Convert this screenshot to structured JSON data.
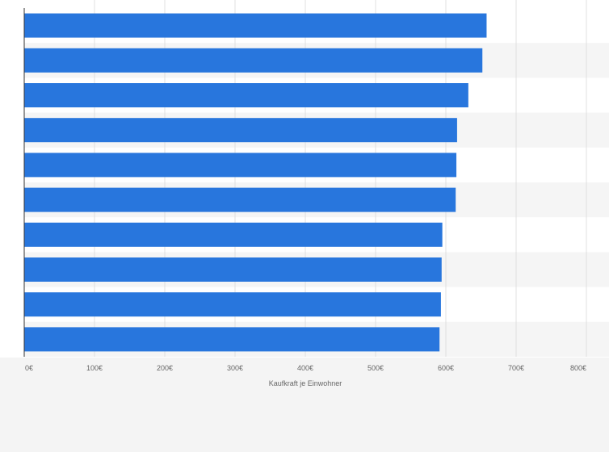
{
  "chart_data": {
    "type": "bar",
    "orientation": "horizontal",
    "categories": [
      "",
      "",
      "",
      "",
      "",
      "",
      "",
      "",
      "",
      ""
    ],
    "values": [
      658,
      652,
      632,
      616,
      615,
      614,
      595,
      594,
      593,
      591
    ],
    "xlabel": "Kaufkraft je Einwohner",
    "ylabel": "",
    "xlim": [
      0,
      800
    ],
    "ticks": [
      0,
      100,
      200,
      300,
      400,
      500,
      600,
      700,
      800
    ],
    "tick_labels": [
      "0€",
      "100€",
      "200€",
      "300€",
      "400€",
      "500€",
      "600€",
      "700€",
      "800€"
    ],
    "grid": true,
    "legend": "none",
    "colors": {
      "bar": "#2876dd",
      "row_stripe": "#f5f5f5",
      "plot_bg": "#ffffff",
      "page_bg": "#f4f4f4",
      "grid": "#e0e0e0",
      "axis": "#333333",
      "text": "#666666"
    }
  }
}
